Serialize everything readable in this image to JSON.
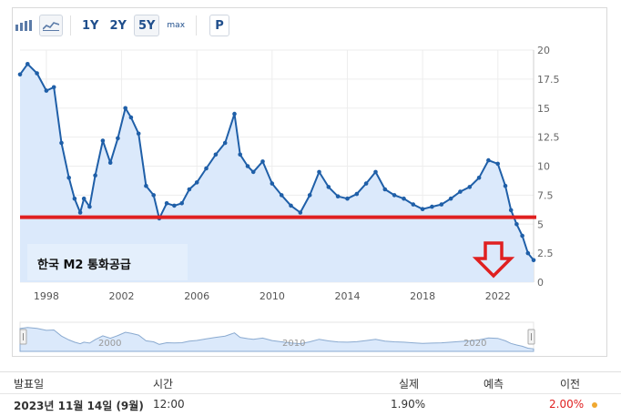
{
  "toolbar": {
    "bar_chart_icon": "bar-chart-icon",
    "line_chart_icon": "line-chart-icon",
    "ranges": [
      "1Y",
      "2Y",
      "5Y",
      "max"
    ],
    "selected_range": "5Y",
    "p_label": "P"
  },
  "annotation": {
    "label": "한국 M2 통화공급",
    "line_color": "#e02020",
    "arrow_color": "#e02020",
    "reference_level": 5.6
  },
  "colors": {
    "series": "#1f5fa8",
    "fill": "#dbe9fb",
    "down_value": "#e02020",
    "dot": "#f0a830"
  },
  "chart_data": {
    "type": "line",
    "x": [
      1996.6,
      1997.0,
      1997.5,
      1998.0,
      1998.4,
      1998.8,
      1999.2,
      1999.5,
      1999.8,
      2000.0,
      2000.3,
      2000.6,
      2001.0,
      2001.4,
      2001.8,
      2002.2,
      2002.5,
      2002.9,
      2003.3,
      2003.7,
      2004.0,
      2004.4,
      2004.8,
      2005.2,
      2005.6,
      2006.0,
      2006.5,
      2007.0,
      2007.5,
      2008.0,
      2008.3,
      2008.7,
      2009.0,
      2009.5,
      2010.0,
      2010.5,
      2011.0,
      2011.5,
      2012.0,
      2012.5,
      2013.0,
      2013.5,
      2014.0,
      2014.5,
      2015.0,
      2015.5,
      2016.0,
      2016.5,
      2017.0,
      2017.5,
      2018.0,
      2018.5,
      2019.0,
      2019.5,
      2020.0,
      2020.5,
      2021.0,
      2021.5,
      2022.0,
      2022.4,
      2022.7,
      2023.0,
      2023.3,
      2023.6,
      2023.9
    ],
    "y": [
      17.9,
      18.8,
      18.0,
      16.5,
      16.8,
      12.0,
      9.0,
      7.2,
      6.0,
      7.2,
      6.5,
      9.2,
      12.2,
      10.3,
      12.4,
      15.0,
      14.2,
      12.8,
      8.3,
      7.5,
      5.5,
      6.8,
      6.6,
      6.8,
      8.0,
      8.6,
      9.8,
      11.0,
      12.0,
      14.5,
      11.0,
      10.0,
      9.5,
      10.4,
      8.5,
      7.5,
      6.6,
      6.0,
      7.5,
      9.5,
      8.2,
      7.4,
      7.2,
      7.6,
      8.5,
      9.5,
      8.0,
      7.5,
      7.2,
      6.7,
      6.3,
      6.5,
      6.7,
      7.2,
      7.8,
      8.2,
      9.0,
      10.5,
      10.2,
      8.3,
      6.2,
      5.0,
      4.0,
      2.5,
      1.9
    ],
    "ylim": [
      0,
      20
    ],
    "y_ticks": [
      "0",
      "2.5",
      "5",
      "7.5",
      "10",
      "12.5",
      "15",
      "17.5",
      "20"
    ],
    "x_ticks": [
      "1998",
      "2002",
      "2006",
      "2010",
      "2014",
      "2018",
      "2022"
    ],
    "navigator_ticks": [
      "2000",
      "2010",
      "2020"
    ],
    "grid": true,
    "y_axis_side": "right"
  },
  "table": {
    "headers": [
      "발표일",
      "시간",
      "실제",
      "예측",
      "이전"
    ],
    "row": {
      "date": "2023년 11월 14일 (9월)",
      "time": "12:00",
      "actual": "1.90%",
      "forecast": "",
      "previous": "2.00%"
    }
  }
}
